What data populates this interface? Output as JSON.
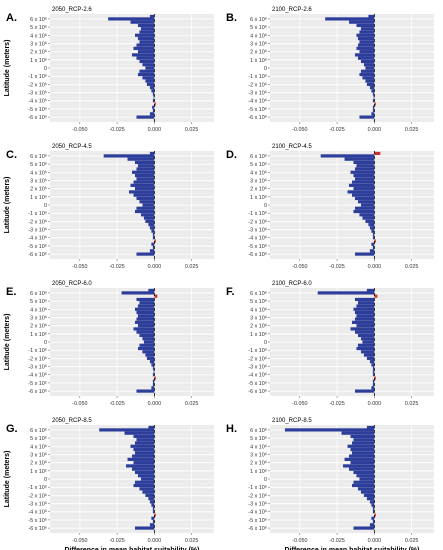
{
  "figure": {
    "ylabel": "Latitude (meters)",
    "xlabel": "Difference in mean habitat suitability (%)"
  },
  "chart_data": [
    {
      "type": "bar",
      "orientation": "horizontal",
      "panel_letter": "A.",
      "title": "2050_RCP-2.6",
      "xlim": [
        -0.07,
        0.04
      ],
      "ylim": [
        -6.6,
        6.6
      ],
      "grid": true,
      "xticks": [
        -0.05,
        -0.025,
        0.0,
        0.025
      ],
      "xtick_labels": [
        "-0.050",
        "-0.025",
        "0.000",
        "0.025"
      ],
      "yticks": [
        6,
        5,
        4,
        3,
        2,
        1,
        0,
        -1,
        -2,
        -3,
        -4,
        -5,
        -6
      ],
      "ytick_labels": [
        "6 x 10⁶",
        "5 x 10⁶",
        "4 x 10⁶",
        "3 x 10⁶",
        "2 x 10⁶",
        "1 x 10⁶",
        "0",
        "-1 x 10⁶",
        "-2 x 10⁶",
        "-3 x 10⁶",
        "-4 x 10⁶",
        "-5 x 10⁶",
        "-6 x 10⁶"
      ],
      "y_units": "x 10⁶ m",
      "colors": {
        "negative": "#2d3e9a",
        "positive": "#c83232"
      },
      "latitude": [
        6.3,
        6.0,
        5.6,
        5.2,
        4.8,
        4.4,
        4.0,
        3.6,
        3.2,
        2.8,
        2.4,
        2.0,
        1.6,
        1.2,
        0.8,
        0.4,
        0.0,
        -0.4,
        -0.8,
        -1.2,
        -1.6,
        -2.0,
        -2.4,
        -2.8,
        -3.2,
        -3.6,
        -4.0,
        -4.4,
        -4.8,
        -5.2,
        -5.6,
        -6.0
      ],
      "values": [
        -0.003,
        -0.031,
        -0.016,
        -0.011,
        -0.009,
        -0.01,
        -0.013,
        -0.011,
        -0.01,
        -0.012,
        -0.014,
        -0.011,
        -0.015,
        -0.012,
        -0.01,
        -0.008,
        -0.006,
        -0.01,
        -0.011,
        -0.008,
        -0.006,
        -0.005,
        -0.003,
        -0.002,
        -0.001,
        -0.0005,
        -0.001,
        0.001,
        -0.0015,
        -0.001,
        -0.003,
        -0.012
      ]
    },
    {
      "type": "bar",
      "orientation": "horizontal",
      "panel_letter": "B.",
      "title": "2100_RCP-2.6",
      "xlim": [
        -0.07,
        0.04
      ],
      "ylim": [
        -6.6,
        6.6
      ],
      "grid": true,
      "xticks": [
        -0.05,
        -0.025,
        0.0,
        0.025
      ],
      "xtick_labels": [
        "-0.050",
        "-0.025",
        "0.000",
        "0.025"
      ],
      "yticks": [
        6,
        5,
        4,
        3,
        2,
        1,
        0,
        -1,
        -2,
        -3,
        -4,
        -5,
        -6
      ],
      "ytick_labels": [
        "6 x 10⁶",
        "5 x 10⁶",
        "4 x 10⁶",
        "3 x 10⁶",
        "2 x 10⁶",
        "1 x 10⁶",
        "0",
        "-1 x 10⁶",
        "-2 x 10⁶",
        "-3 x 10⁶",
        "-4 x 10⁶",
        "-5 x 10⁶",
        "-6 x 10⁶"
      ],
      "y_units": "x 10⁶ m",
      "colors": {
        "negative": "#2d3e9a",
        "positive": "#c83232"
      },
      "latitude": [
        6.3,
        6.0,
        5.6,
        5.2,
        4.8,
        4.4,
        4.0,
        3.6,
        3.2,
        2.8,
        2.4,
        2.0,
        1.6,
        1.2,
        0.8,
        0.4,
        0.0,
        -0.4,
        -0.8,
        -1.2,
        -1.6,
        -2.0,
        -2.4,
        -2.8,
        -3.2,
        -3.6,
        -4.0,
        -4.4,
        -4.8,
        -5.2,
        -5.6,
        -6.0
      ],
      "values": [
        -0.004,
        -0.033,
        -0.017,
        -0.012,
        -0.009,
        -0.01,
        -0.012,
        -0.011,
        -0.01,
        -0.011,
        -0.012,
        -0.01,
        -0.013,
        -0.011,
        -0.009,
        -0.007,
        -0.006,
        -0.009,
        -0.01,
        -0.008,
        -0.006,
        -0.005,
        -0.003,
        -0.002,
        -0.001,
        -0.0005,
        -0.001,
        0.001,
        -0.001,
        -0.001,
        -0.002,
        -0.01
      ]
    },
    {
      "type": "bar",
      "orientation": "horizontal",
      "panel_letter": "C.",
      "title": "2050_RCP-4.5",
      "xlim": [
        -0.07,
        0.04
      ],
      "ylim": [
        -6.6,
        6.6
      ],
      "grid": true,
      "xticks": [
        -0.05,
        -0.025,
        0.0,
        0.025
      ],
      "xtick_labels": [
        "-0.050",
        "-0.025",
        "0.000",
        "0.025"
      ],
      "yticks": [
        6,
        5,
        4,
        3,
        2,
        1,
        0,
        -1,
        -2,
        -3,
        -4,
        -5,
        -6
      ],
      "ytick_labels": [
        "6 x 10⁶",
        "5 x 10⁶",
        "4 x 10⁶",
        "3 x 10⁶",
        "2 x 10⁶",
        "1 x 10⁶",
        "0",
        "-1 x 10⁶",
        "-2 x 10⁶",
        "-3 x 10⁶",
        "-4 x 10⁶",
        "-5 x 10⁶",
        "-6 x 10⁶"
      ],
      "y_units": "x 10⁶ m",
      "colors": {
        "negative": "#2d3e9a",
        "positive": "#c83232"
      },
      "latitude": [
        6.3,
        6.0,
        5.6,
        5.2,
        4.8,
        4.4,
        4.0,
        3.6,
        3.2,
        2.8,
        2.4,
        2.0,
        1.6,
        1.2,
        0.8,
        0.4,
        0.0,
        -0.4,
        -0.8,
        -1.2,
        -1.6,
        -2.0,
        -2.4,
        -2.8,
        -3.2,
        -3.6,
        -4.0,
        -4.4,
        -4.8,
        -5.2,
        -5.6,
        -6.0
      ],
      "values": [
        -0.003,
        -0.034,
        -0.018,
        -0.013,
        -0.011,
        -0.012,
        -0.015,
        -0.013,
        -0.012,
        -0.014,
        -0.016,
        -0.013,
        -0.017,
        -0.014,
        -0.012,
        -0.01,
        -0.008,
        -0.012,
        -0.013,
        -0.009,
        -0.007,
        -0.006,
        -0.004,
        -0.003,
        -0.002,
        -0.001,
        -0.001,
        0.001,
        -0.002,
        -0.001,
        -0.003,
        -0.012
      ]
    },
    {
      "type": "bar",
      "orientation": "horizontal",
      "panel_letter": "D.",
      "title": "2100_RCP-4.5",
      "xlim": [
        -0.07,
        0.04
      ],
      "ylim": [
        -6.6,
        6.6
      ],
      "grid": true,
      "xticks": [
        -0.05,
        -0.025,
        0.0,
        0.025
      ],
      "xtick_labels": [
        "-0.050",
        "-0.025",
        "0.000",
        "0.025"
      ],
      "yticks": [
        6,
        5,
        4,
        3,
        2,
        1,
        0,
        -1,
        -2,
        -3,
        -4,
        -5,
        -6
      ],
      "ytick_labels": [
        "6 x 10⁶",
        "5 x 10⁶",
        "4 x 10⁶",
        "3 x 10⁶",
        "2 x 10⁶",
        "1 x 10⁶",
        "0",
        "-1 x 10⁶",
        "-2 x 10⁶",
        "-3 x 10⁶",
        "-4 x 10⁶",
        "-5 x 10⁶",
        "-6 x 10⁶"
      ],
      "y_units": "x 10⁶ m",
      "colors": {
        "negative": "#2d3e9a",
        "positive": "#c83232"
      },
      "latitude": [
        6.3,
        6.0,
        5.6,
        5.2,
        4.8,
        4.4,
        4.0,
        3.6,
        3.2,
        2.8,
        2.4,
        2.0,
        1.6,
        1.2,
        0.8,
        0.4,
        0.0,
        -0.4,
        -0.8,
        -1.2,
        -1.6,
        -2.0,
        -2.4,
        -2.8,
        -3.2,
        -3.6,
        -4.0,
        -4.4,
        -4.8,
        -5.2,
        -5.6,
        -6.0
      ],
      "values": [
        0.004,
        -0.036,
        -0.02,
        -0.014,
        -0.012,
        -0.013,
        -0.016,
        -0.014,
        -0.013,
        -0.015,
        -0.017,
        -0.014,
        -0.018,
        -0.015,
        -0.013,
        -0.011,
        -0.009,
        -0.013,
        -0.014,
        -0.01,
        -0.008,
        -0.006,
        -0.004,
        -0.003,
        -0.002,
        -0.001,
        -0.001,
        0.001,
        -0.002,
        -0.001,
        -0.003,
        -0.013
      ]
    },
    {
      "type": "bar",
      "orientation": "horizontal",
      "panel_letter": "E.",
      "title": "2050_RCP-6.0",
      "xlim": [
        -0.07,
        0.04
      ],
      "ylim": [
        -6.6,
        6.6
      ],
      "grid": true,
      "xticks": [
        -0.05,
        -0.025,
        0.0,
        0.025
      ],
      "xtick_labels": [
        "-0.050",
        "-0.025",
        "0.000",
        "0.025"
      ],
      "yticks": [
        6,
        5,
        4,
        3,
        2,
        1,
        0,
        -1,
        -2,
        -3,
        -4,
        -5,
        -6
      ],
      "ytick_labels": [
        "6 x 10⁶",
        "5 x 10⁶",
        "4 x 10⁶",
        "3 x 10⁶",
        "2 x 10⁶",
        "1 x 10⁶",
        "0",
        "-1 x 10⁶",
        "-2 x 10⁶",
        "-3 x 10⁶",
        "-4 x 10⁶",
        "-5 x 10⁶",
        "-6 x 10⁶"
      ],
      "y_units": "x 10⁶ m",
      "colors": {
        "negative": "#2d3e9a",
        "positive": "#c83232"
      },
      "latitude": [
        6.3,
        6.0,
        5.6,
        5.2,
        4.8,
        4.4,
        4.0,
        3.6,
        3.2,
        2.8,
        2.4,
        2.0,
        1.6,
        1.2,
        0.8,
        0.4,
        0.0,
        -0.4,
        -0.8,
        -1.2,
        -1.6,
        -2.0,
        -2.4,
        -2.8,
        -3.2,
        -3.6,
        -4.0,
        -4.4,
        -4.8,
        -5.2,
        -5.6,
        -6.0
      ],
      "values": [
        -0.004,
        -0.022,
        0.002,
        -0.012,
        -0.01,
        -0.011,
        -0.013,
        -0.012,
        -0.011,
        -0.012,
        -0.013,
        -0.011,
        -0.014,
        -0.012,
        -0.01,
        -0.008,
        -0.007,
        -0.01,
        -0.011,
        -0.008,
        -0.006,
        -0.005,
        -0.003,
        -0.002,
        -0.001,
        -0.0005,
        -0.001,
        0.001,
        -0.001,
        -0.001,
        -0.002,
        -0.012
      ]
    },
    {
      "type": "bar",
      "orientation": "horizontal",
      "panel_letter": "F.",
      "title": "2100_RCP-6.0",
      "xlim": [
        -0.07,
        0.04
      ],
      "ylim": [
        -6.6,
        6.6
      ],
      "grid": true,
      "xticks": [
        -0.05,
        -0.025,
        0.0,
        0.025
      ],
      "xtick_labels": [
        "-0.050",
        "-0.025",
        "0.000",
        "0.025"
      ],
      "yticks": [
        6,
        5,
        4,
        3,
        2,
        1,
        0,
        -1,
        -2,
        -3,
        -4,
        -5,
        -6
      ],
      "ytick_labels": [
        "6 x 10⁶",
        "5 x 10⁶",
        "4 x 10⁶",
        "3 x 10⁶",
        "2 x 10⁶",
        "1 x 10⁶",
        "0",
        "-1 x 10⁶",
        "-2 x 10⁶",
        "-3 x 10⁶",
        "-4 x 10⁶",
        "-5 x 10⁶",
        "-6 x 10⁶"
      ],
      "y_units": "x 10⁶ m",
      "colors": {
        "negative": "#2d3e9a",
        "positive": "#c83232"
      },
      "latitude": [
        6.3,
        6.0,
        5.6,
        5.2,
        4.8,
        4.4,
        4.0,
        3.6,
        3.2,
        2.8,
        2.4,
        2.0,
        1.6,
        1.2,
        0.8,
        0.4,
        0.0,
        -0.4,
        -0.8,
        -1.2,
        -1.6,
        -2.0,
        -2.4,
        -2.8,
        -3.2,
        -3.6,
        -4.0,
        -4.4,
        -4.8,
        -5.2,
        -5.6,
        -6.0
      ],
      "values": [
        -0.005,
        -0.038,
        0.002,
        -0.013,
        -0.011,
        -0.012,
        -0.014,
        -0.013,
        -0.012,
        -0.013,
        -0.015,
        -0.012,
        -0.016,
        -0.013,
        -0.011,
        -0.009,
        -0.008,
        -0.011,
        -0.012,
        -0.009,
        -0.007,
        -0.005,
        -0.003,
        -0.002,
        -0.001,
        -0.001,
        -0.001,
        0.001,
        -0.001,
        -0.001,
        -0.002,
        -0.013
      ]
    },
    {
      "type": "bar",
      "orientation": "horizontal",
      "panel_letter": "G.",
      "title": "2050_RCP-8.5",
      "xlim": [
        -0.07,
        0.04
      ],
      "ylim": [
        -6.6,
        6.6
      ],
      "grid": true,
      "xticks": [
        -0.05,
        -0.025,
        0.0,
        0.025
      ],
      "xtick_labels": [
        "-0.050",
        "-0.025",
        "0.000",
        "0.025"
      ],
      "yticks": [
        6,
        5,
        4,
        3,
        2,
        1,
        0,
        -1,
        -2,
        -3,
        -4,
        -5,
        -6
      ],
      "ytick_labels": [
        "6 x 10⁶",
        "5 x 10⁶",
        "4 x 10⁶",
        "3 x 10⁶",
        "2 x 10⁶",
        "1 x 10⁶",
        "0",
        "-1 x 10⁶",
        "-2 x 10⁶",
        "-3 x 10⁶",
        "-4 x 10⁶",
        "-5 x 10⁶",
        "-6 x 10⁶"
      ],
      "y_units": "x 10⁶ m",
      "colors": {
        "negative": "#2d3e9a",
        "positive": "#c83232"
      },
      "latitude": [
        6.3,
        6.0,
        5.6,
        5.2,
        4.8,
        4.4,
        4.0,
        3.6,
        3.2,
        2.8,
        2.4,
        2.0,
        1.6,
        1.2,
        0.8,
        0.4,
        0.0,
        -0.4,
        -0.8,
        -1.2,
        -1.6,
        -2.0,
        -2.4,
        -2.8,
        -3.2,
        -3.6,
        -4.0,
        -4.4,
        -4.8,
        -5.2,
        -5.6,
        -6.0
      ],
      "values": [
        -0.004,
        -0.037,
        -0.02,
        -0.014,
        -0.012,
        -0.013,
        -0.016,
        -0.014,
        -0.013,
        -0.015,
        -0.018,
        -0.014,
        -0.019,
        -0.015,
        -0.013,
        -0.011,
        -0.009,
        -0.013,
        -0.014,
        -0.01,
        -0.008,
        -0.006,
        -0.004,
        -0.003,
        -0.002,
        -0.001,
        -0.001,
        0.001,
        -0.002,
        -0.001,
        -0.003,
        -0.013
      ]
    },
    {
      "type": "bar",
      "orientation": "horizontal",
      "panel_letter": "H.",
      "title": "2100_RCP-8.5",
      "xlim": [
        -0.07,
        0.04
      ],
      "ylim": [
        -6.6,
        6.6
      ],
      "grid": true,
      "xticks": [
        -0.05,
        -0.025,
        0.0,
        0.025
      ],
      "xtick_labels": [
        "-0.050",
        "-0.025",
        "0.000",
        "0.025"
      ],
      "yticks": [
        6,
        5,
        4,
        3,
        2,
        1,
        0,
        -1,
        -2,
        -3,
        -4,
        -5,
        -6
      ],
      "ytick_labels": [
        "6 x 10⁶",
        "5 x 10⁶",
        "4 x 10⁶",
        "3 x 10⁶",
        "2 x 10⁶",
        "1 x 10⁶",
        "0",
        "-1 x 10⁶",
        "-2 x 10⁶",
        "-3 x 10⁶",
        "-4 x 10⁶",
        "-5 x 10⁶",
        "-6 x 10⁶"
      ],
      "y_units": "x 10⁶ m",
      "colors": {
        "negative": "#2d3e9a",
        "positive": "#c83232"
      },
      "latitude": [
        6.3,
        6.0,
        5.6,
        5.2,
        4.8,
        4.4,
        4.0,
        3.6,
        3.2,
        2.8,
        2.4,
        2.0,
        1.6,
        1.2,
        0.8,
        0.4,
        0.0,
        -0.4,
        -0.8,
        -1.2,
        -1.6,
        -2.0,
        -2.4,
        -2.8,
        -3.2,
        -3.6,
        -4.0,
        -4.4,
        -4.8,
        -5.2,
        -5.6,
        -6.0
      ],
      "values": [
        -0.005,
        -0.06,
        -0.022,
        -0.016,
        -0.014,
        -0.015,
        -0.018,
        -0.016,
        -0.015,
        -0.017,
        -0.02,
        -0.016,
        -0.021,
        -0.017,
        -0.014,
        -0.012,
        -0.01,
        -0.014,
        -0.015,
        -0.011,
        -0.009,
        -0.007,
        -0.005,
        -0.003,
        -0.002,
        -0.001,
        -0.001,
        0.001,
        -0.002,
        -0.001,
        -0.003,
        -0.014
      ]
    }
  ]
}
